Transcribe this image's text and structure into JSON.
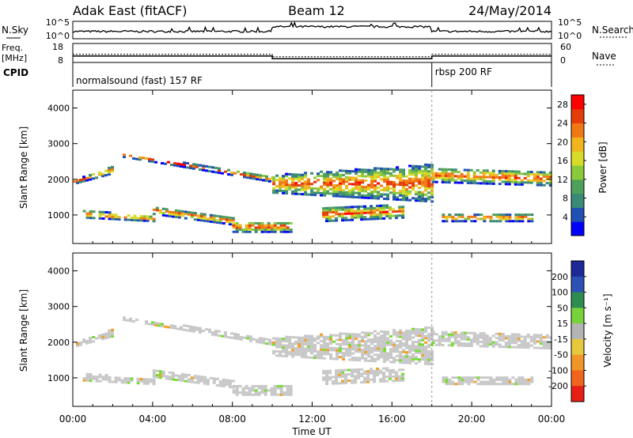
{
  "header": {
    "station": "Adak East (fitACF)",
    "beam": "Beam 12",
    "date": "24/May/2014"
  },
  "chart_data": [
    {
      "panel": "noise",
      "type": "line",
      "left_label": "N.Sky",
      "right_label": "N.Search",
      "left_ticks": [
        "10^5",
        "10^0"
      ],
      "right_ticks": [
        "10^5",
        "10^0"
      ]
    },
    {
      "panel": "frequency",
      "type": "line",
      "left_label": "Freq.",
      "left_unit": "[MHz]",
      "right_label": "Nave",
      "left_ticks": [
        "18",
        "8"
      ],
      "right_ticks": [
        "60",
        "0"
      ],
      "series": [
        {
          "segments": [
            {
              "x": [
                "00:00",
                "10:00"
              ],
              "y": 12.2
            },
            {
              "x": [
                "10:00",
                "18:00"
              ],
              "y": 10.8
            },
            {
              "x": [
                "18:00",
                "24:00"
              ],
              "y": 12.2
            }
          ]
        },
        {
          "segments": [
            {
              "x": [
                "00:00",
                "10:00"
              ],
              "y": 26
            },
            {
              "x": [
                "10:00",
                "18:00"
              ],
              "y": 18
            },
            {
              "x": [
                "18:00",
                "24:00"
              ],
              "y": 26
            }
          ]
        }
      ]
    },
    {
      "panel": "cpid",
      "type": "table",
      "label": "CPID",
      "entries": [
        {
          "start": "00:00",
          "end": "18:00",
          "text": "normalsound (fast) 157 RF"
        },
        {
          "start": "18:00",
          "end": "24:00",
          "text": "rbsp 200 RF"
        }
      ]
    },
    {
      "panel": "power",
      "type": "heatmap",
      "ylabel": "Slant Range [km]",
      "ylim": [
        200,
        4500
      ],
      "yticks": [
        "1000",
        "2000",
        "3000",
        "4000"
      ],
      "colorbar": {
        "label": "Power [dB]",
        "ticks": [
          "4",
          "8",
          "12",
          "16",
          "20",
          "24",
          "28"
        ],
        "range": [
          0,
          30
        ]
      }
    },
    {
      "panel": "velocity",
      "type": "heatmap",
      "ylabel": "Slant Range [km]",
      "ylim": [
        200,
        4500
      ],
      "yticks": [
        "1000",
        "2000",
        "3000",
        "4000"
      ],
      "colorbar": {
        "label": "Velocity [m s⁻¹]",
        "ticks": [
          "200",
          "100",
          "50",
          "15",
          "-15",
          "-50",
          "-100",
          "-200"
        ]
      }
    }
  ],
  "xaxis": {
    "label": "Time UT",
    "ticks": [
      "00:00",
      "04:00",
      "08:00",
      "12:00",
      "16:00",
      "20:00",
      "00:00"
    ],
    "range_hours": [
      0,
      24
    ]
  },
  "colors": {
    "power_scale": [
      "#0000ff",
      "#2050b4",
      "#3a8a78",
      "#4ea05a",
      "#8cc83c",
      "#d7dc28",
      "#f0b41e",
      "#f07814",
      "#e63c0a",
      "#ff0000"
    ],
    "velocity_scale": [
      "#1e2896",
      "#2d50b4",
      "#2d8c50",
      "#78d23c",
      "#b4b4b4",
      "#e6c83c",
      "#f09628",
      "#f0641e",
      "#e61e14"
    ],
    "velocity_gray": "#c8c8c8",
    "velocity_green": "#78dc32"
  }
}
